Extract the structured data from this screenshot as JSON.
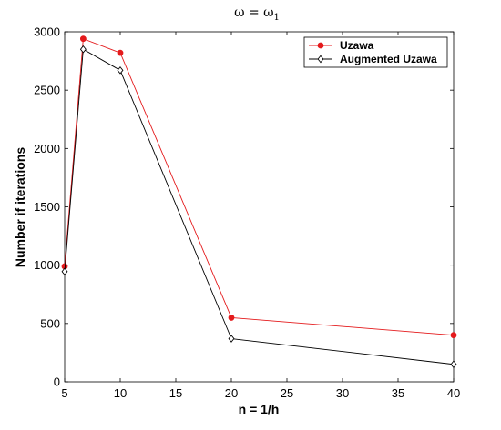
{
  "chart_data": {
    "type": "line",
    "title": "ω = ω",
    "title_subscript": "1",
    "xlabel": "n = 1/h",
    "ylabel": "Number if iterations",
    "xlim": [
      5,
      40
    ],
    "ylim": [
      0,
      3000
    ],
    "xticks": [
      5,
      10,
      15,
      20,
      25,
      30,
      35,
      40
    ],
    "yticks": [
      0,
      500,
      1000,
      1500,
      2000,
      2500,
      3000
    ],
    "grid": false,
    "legend_position": "top-right",
    "series": [
      {
        "name": "Uzawa",
        "color": "#e41a1c",
        "marker": "filled-circle",
        "x": [
          5,
          6.67,
          10,
          20,
          40
        ],
        "y": [
          990,
          2940,
          2820,
          550,
          400
        ]
      },
      {
        "name": "Augmented Uzawa",
        "color": "#000000",
        "marker": "open-diamond",
        "x": [
          5,
          6.67,
          10,
          20,
          40
        ],
        "y": [
          945,
          2850,
          2670,
          370,
          150
        ]
      }
    ]
  }
}
